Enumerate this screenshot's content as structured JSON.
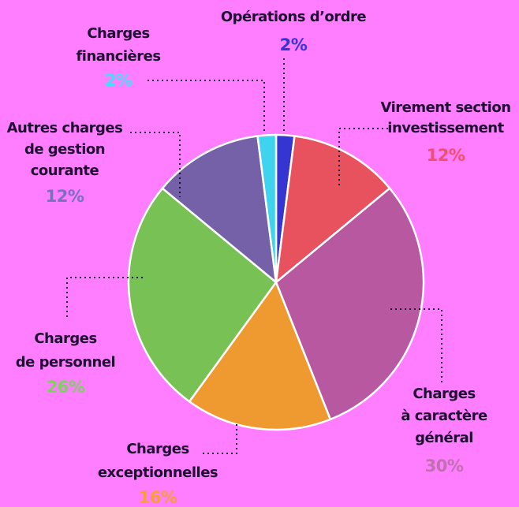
{
  "chart_data": {
    "type": "pie",
    "categories": [
      [
        "Opérations d’ordre"
      ],
      [
        "Virement section",
        "investissement"
      ],
      [
        "Charges",
        "à caractère",
        "général"
      ],
      [
        "Charges",
        "exceptionnelles"
      ],
      [
        "Charges",
        "de personnel"
      ],
      [
        "Autres charges",
        "de gestion",
        "courante"
      ],
      [
        "Charges",
        "financières"
      ]
    ],
    "values": [
      2,
      12,
      30,
      16,
      26,
      12,
      2
    ],
    "value_labels": [
      "2%",
      "12%",
      "30%",
      "16%",
      "26%",
      "12%",
      "2%"
    ],
    "colors": [
      "#3535d2",
      "#e8525f",
      "#b858a0",
      "#ee9a30",
      "#78c155",
      "#7461a8",
      "#3fd3ee"
    ],
    "label_colors": [
      "#3535d2",
      "#f0506a",
      "#c070b0",
      "#f5a030",
      "#7ed060",
      "#7a70c0",
      "#45ddf5"
    ]
  }
}
